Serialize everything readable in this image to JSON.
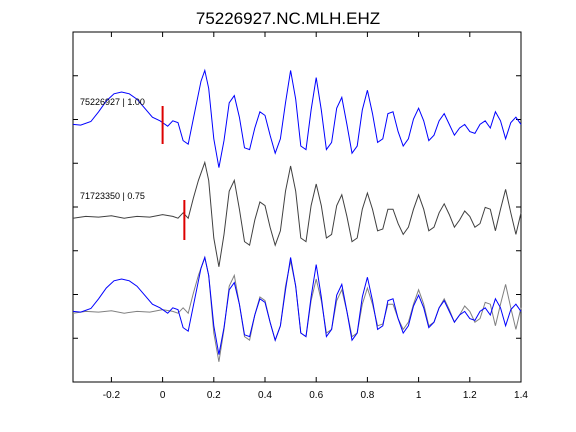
{
  "chart_data": {
    "type": "line",
    "title": "75226927.NC.MLH.EHZ",
    "xlabel": "",
    "ylabel": "",
    "xlim": [
      -0.35,
      1.4
    ],
    "x_ticks": [
      -0.2,
      0,
      0.2,
      0.4,
      0.6,
      0.8,
      1,
      1.2,
      1.4
    ],
    "x_tick_labels": [
      "-0.2",
      "0",
      "0.2",
      "0.4",
      "0.6",
      "0.8",
      "1",
      "1.2",
      "1.4"
    ],
    "y_ticks_count": 7,
    "grid": false,
    "traces": [
      {
        "label": "75226927 | 1.00",
        "color": "#0000ff",
        "pick_time": 0.0,
        "points": [
          [
            -0.35,
            0.1
          ],
          [
            -0.32,
            0.08
          ],
          [
            -0.28,
            0.18
          ],
          [
            -0.25,
            0.45
          ],
          [
            -0.22,
            0.75
          ],
          [
            -0.19,
            0.95
          ],
          [
            -0.16,
            1.0
          ],
          [
            -0.13,
            0.95
          ],
          [
            -0.1,
            0.8
          ],
          [
            -0.07,
            0.55
          ],
          [
            -0.04,
            0.3
          ],
          [
            -0.01,
            0.2
          ],
          [
            0.0,
            0.15
          ],
          [
            0.02,
            0.05
          ],
          [
            0.04,
            0.2
          ],
          [
            0.06,
            0.15
          ],
          [
            0.08,
            -0.35
          ],
          [
            0.1,
            -0.45
          ],
          [
            0.12,
            0.25
          ],
          [
            0.15,
            1.3
          ],
          [
            0.165,
            1.6
          ],
          [
            0.18,
            1.1
          ],
          [
            0.2,
            -0.3
          ],
          [
            0.22,
            -1.1
          ],
          [
            0.24,
            -0.35
          ],
          [
            0.26,
            0.7
          ],
          [
            0.28,
            0.9
          ],
          [
            0.3,
            0.3
          ],
          [
            0.32,
            -0.55
          ],
          [
            0.34,
            -0.6
          ],
          [
            0.36,
            0.0
          ],
          [
            0.38,
            0.45
          ],
          [
            0.4,
            0.35
          ],
          [
            0.42,
            -0.2
          ],
          [
            0.44,
            -0.7
          ],
          [
            0.46,
            -0.3
          ],
          [
            0.48,
            0.7
          ],
          [
            0.5,
            1.6
          ],
          [
            0.52,
            0.8
          ],
          [
            0.54,
            -0.5
          ],
          [
            0.56,
            -0.6
          ],
          [
            0.58,
            0.5
          ],
          [
            0.6,
            1.4
          ],
          [
            0.62,
            0.5
          ],
          [
            0.64,
            -0.6
          ],
          [
            0.66,
            -0.4
          ],
          [
            0.68,
            0.55
          ],
          [
            0.7,
            0.85
          ],
          [
            0.72,
            0.1
          ],
          [
            0.74,
            -0.7
          ],
          [
            0.76,
            -0.5
          ],
          [
            0.78,
            0.5
          ],
          [
            0.8,
            1.05
          ],
          [
            0.82,
            0.4
          ],
          [
            0.84,
            -0.4
          ],
          [
            0.86,
            -0.3
          ],
          [
            0.88,
            0.4
          ],
          [
            0.9,
            0.45
          ],
          [
            0.92,
            -0.1
          ],
          [
            0.94,
            -0.5
          ],
          [
            0.96,
            -0.3
          ],
          [
            0.98,
            0.25
          ],
          [
            1.0,
            0.55
          ],
          [
            1.02,
            0.2
          ],
          [
            1.04,
            -0.35
          ],
          [
            1.06,
            -0.2
          ],
          [
            1.08,
            0.2
          ],
          [
            1.1,
            0.4
          ],
          [
            1.12,
            0.1
          ],
          [
            1.14,
            -0.2
          ],
          [
            1.16,
            0.0
          ],
          [
            1.18,
            0.1
          ],
          [
            1.2,
            -0.1
          ],
          [
            1.22,
            -0.15
          ],
          [
            1.24,
            0.1
          ],
          [
            1.26,
            0.2
          ],
          [
            1.28,
            0.0
          ],
          [
            1.3,
            0.45
          ],
          [
            1.32,
            0.2
          ],
          [
            1.34,
            -0.3
          ],
          [
            1.36,
            0.15
          ],
          [
            1.38,
            0.3
          ],
          [
            1.4,
            0.1
          ]
        ]
      },
      {
        "label": "71723350 | 0.75",
        "color": "#404040",
        "pick_time": 0.085,
        "points": [
          [
            -0.35,
            0.05
          ],
          [
            -0.3,
            0.1
          ],
          [
            -0.25,
            0.08
          ],
          [
            -0.2,
            0.12
          ],
          [
            -0.15,
            0.05
          ],
          [
            -0.1,
            0.1
          ],
          [
            -0.05,
            0.08
          ],
          [
            0.0,
            0.15
          ],
          [
            0.04,
            0.1
          ],
          [
            0.06,
            0.05
          ],
          [
            0.08,
            0.2
          ],
          [
            0.1,
            0.05
          ],
          [
            0.12,
            0.6
          ],
          [
            0.14,
            1.1
          ],
          [
            0.165,
            1.6
          ],
          [
            0.18,
            1.1
          ],
          [
            0.2,
            -0.5
          ],
          [
            0.22,
            -1.3
          ],
          [
            0.24,
            -0.4
          ],
          [
            0.26,
            0.8
          ],
          [
            0.28,
            1.1
          ],
          [
            0.3,
            0.3
          ],
          [
            0.32,
            -0.6
          ],
          [
            0.34,
            -0.7
          ],
          [
            0.36,
            0.0
          ],
          [
            0.38,
            0.5
          ],
          [
            0.4,
            0.4
          ],
          [
            0.42,
            -0.2
          ],
          [
            0.44,
            -0.7
          ],
          [
            0.46,
            -0.3
          ],
          [
            0.48,
            0.8
          ],
          [
            0.5,
            1.5
          ],
          [
            0.52,
            0.8
          ],
          [
            0.54,
            -0.5
          ],
          [
            0.56,
            -0.6
          ],
          [
            0.58,
            0.4
          ],
          [
            0.6,
            1.0
          ],
          [
            0.62,
            0.4
          ],
          [
            0.64,
            -0.5
          ],
          [
            0.66,
            -0.4
          ],
          [
            0.68,
            0.4
          ],
          [
            0.7,
            0.7
          ],
          [
            0.72,
            0.1
          ],
          [
            0.74,
            -0.6
          ],
          [
            0.76,
            -0.5
          ],
          [
            0.78,
            0.3
          ],
          [
            0.8,
            0.75
          ],
          [
            0.82,
            0.3
          ],
          [
            0.84,
            -0.3
          ],
          [
            0.86,
            -0.25
          ],
          [
            0.88,
            0.3
          ],
          [
            0.9,
            0.3
          ],
          [
            0.92,
            -0.1
          ],
          [
            0.94,
            -0.4
          ],
          [
            0.96,
            -0.2
          ],
          [
            0.98,
            0.3
          ],
          [
            1.0,
            0.7
          ],
          [
            1.02,
            0.3
          ],
          [
            1.04,
            -0.3
          ],
          [
            1.06,
            -0.2
          ],
          [
            1.08,
            0.2
          ],
          [
            1.1,
            0.45
          ],
          [
            1.12,
            0.15
          ],
          [
            1.14,
            -0.2
          ],
          [
            1.16,
            0.0
          ],
          [
            1.18,
            0.25
          ],
          [
            1.2,
            0.1
          ],
          [
            1.22,
            -0.2
          ],
          [
            1.24,
            -0.1
          ],
          [
            1.26,
            0.35
          ],
          [
            1.28,
            0.3
          ],
          [
            1.3,
            -0.3
          ],
          [
            1.32,
            0.3
          ],
          [
            1.34,
            0.85
          ],
          [
            1.36,
            0.2
          ],
          [
            1.38,
            -0.4
          ],
          [
            1.4,
            0.2
          ]
        ]
      }
    ],
    "overlay": {
      "colors": [
        "#0000ff",
        "#808080"
      ]
    },
    "pick_color": "#dd0000"
  }
}
